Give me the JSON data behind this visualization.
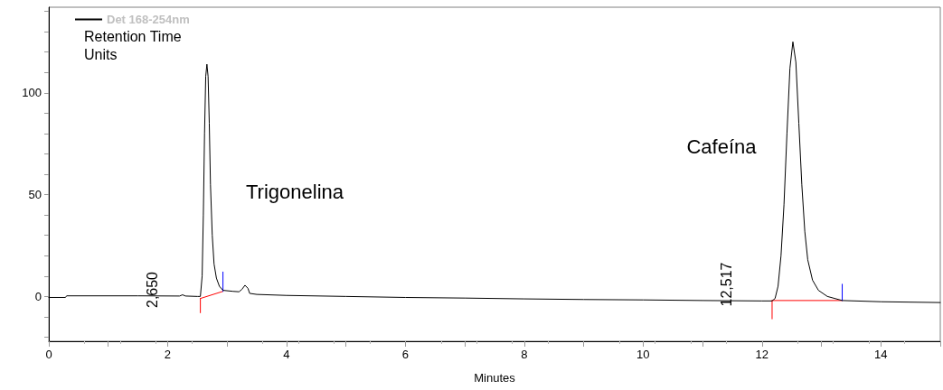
{
  "chart_data": {
    "type": "line",
    "xlabel": "Minutes",
    "xlim": [
      0,
      15
    ],
    "ylim": [
      -22,
      142
    ],
    "xticks": [
      0,
      {
        "value": 1,
        "label": null
      },
      2,
      {
        "value": 3,
        "label": null
      },
      4,
      {
        "value": 5,
        "label": null
      },
      6,
      {
        "value": 7,
        "label": null
      },
      8,
      {
        "value": 9,
        "label": null
      },
      10,
      {
        "value": 11,
        "label": null
      },
      12,
      {
        "value": 13,
        "label": null
      },
      14,
      {
        "value": 15,
        "label": null
      }
    ],
    "yticks": [
      {
        "value": -20,
        "label": null
      },
      {
        "value": -10,
        "label": null
      },
      0,
      {
        "value": 10,
        "label": null
      },
      {
        "value": 20,
        "label": null
      },
      {
        "value": 30,
        "label": null
      },
      {
        "value": 40,
        "label": null
      },
      50,
      {
        "value": 60,
        "label": null
      },
      {
        "value": 70,
        "label": null
      },
      {
        "value": 80,
        "label": null
      },
      {
        "value": 90,
        "label": null
      },
      100,
      {
        "value": 110,
        "label": null
      },
      {
        "value": 120,
        "label": null
      },
      {
        "value": 130,
        "label": null
      },
      {
        "value": 140,
        "label": null
      }
    ],
    "series": [
      {
        "name": "Det 168-254nm",
        "color": "#000000",
        "x": [
          0,
          0.28,
          0.3,
          1.5,
          2.2,
          2.25,
          2.3,
          2.5,
          2.55,
          2.58,
          2.6,
          2.62,
          2.64,
          2.66,
          2.68,
          2.7,
          2.72,
          2.75,
          2.78,
          2.82,
          2.87,
          2.93,
          3.1,
          3.2,
          3.25,
          3.3,
          3.35,
          3.38,
          3.5,
          4,
          5,
          6,
          7,
          8,
          9,
          10,
          11,
          12,
          12.17,
          12.22,
          12.27,
          12.32,
          12.37,
          12.42,
          12.47,
          12.52,
          12.57,
          12.62,
          12.67,
          12.72,
          12.77,
          12.85,
          12.95,
          13.1,
          13.35,
          14,
          15
        ],
        "values": [
          -0.5,
          -0.5,
          0.3,
          0.3,
          0.2,
          0.8,
          0.2,
          0,
          0,
          10,
          40,
          80,
          108,
          114,
          108,
          85,
          55,
          30,
          16,
          9,
          5,
          3,
          2.5,
          2.3,
          3.5,
          5.5,
          4,
          1.5,
          1,
          0.5,
          0,
          -0.5,
          -0.8,
          -1.2,
          -1.5,
          -1.7,
          -2,
          -2.2,
          -2.2,
          -1,
          5,
          20,
          45,
          80,
          112,
          125,
          115,
          85,
          55,
          32,
          18,
          8,
          3,
          0,
          -2,
          -2.6,
          -3
        ]
      },
      {
        "color": "#ff0000",
        "x": [
          2.55,
          2.55,
          null,
          2.55,
          2.93,
          null,
          12.17,
          12.17,
          null,
          12.17,
          13.35
        ],
        "values": [
          -8,
          -1,
          null,
          -1,
          2.5,
          null,
          -11,
          -2,
          null,
          -2,
          -2
        ]
      },
      {
        "color": "#0000ff",
        "x": [
          2.93,
          2.93,
          null,
          13.35,
          13.35
        ],
        "values": [
          2.5,
          12,
          null,
          -2,
          6
        ]
      }
    ],
    "annotations": [
      "Retention Time",
      "Units",
      "2,650",
      "12,517",
      "Trigonelina",
      "Cafeína"
    ],
    "legend": "top left",
    "grid": false,
    "marker": "none",
    "line_style": "solid"
  }
}
